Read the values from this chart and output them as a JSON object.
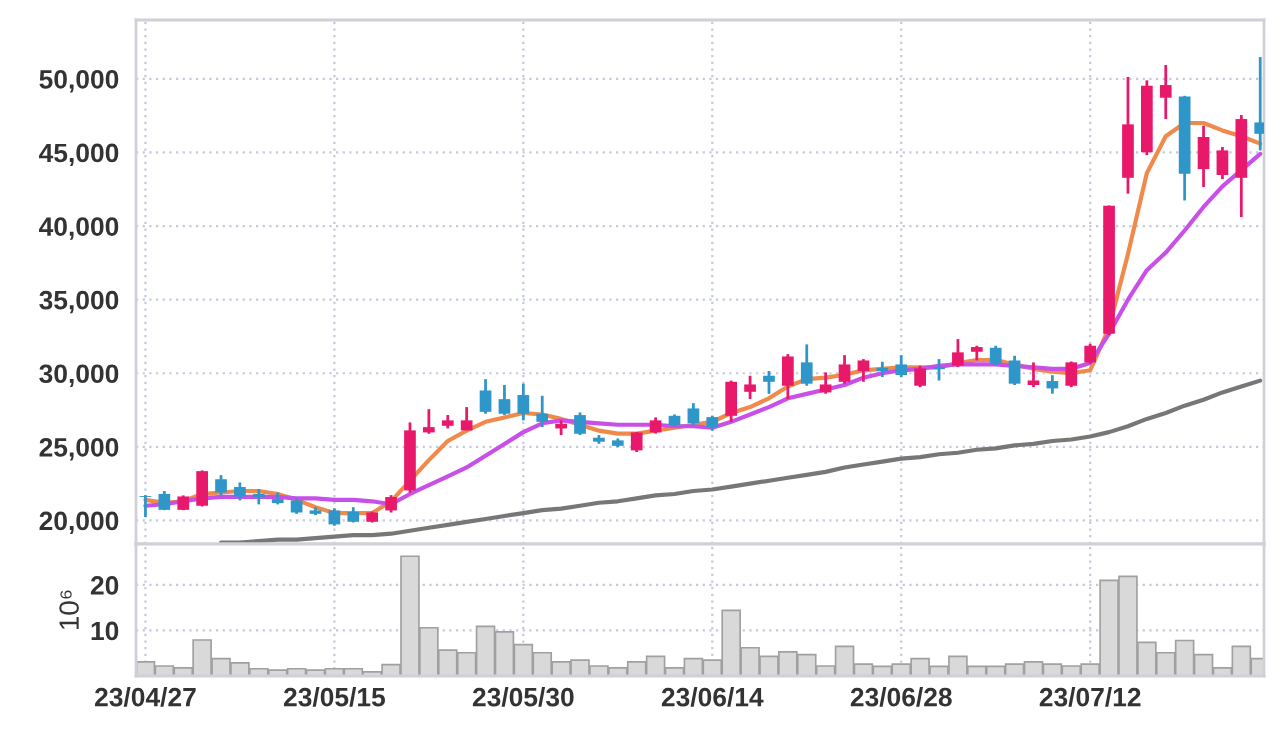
{
  "chart_data": [
    {
      "type": "candlestick",
      "categories": [
        null,
        null,
        null,
        null,
        null,
        null,
        null,
        null,
        null,
        null,
        null,
        null,
        null,
        null,
        null,
        null,
        null,
        null,
        null,
        null,
        null,
        null,
        null,
        null,
        null,
        null,
        null,
        null,
        null,
        null,
        null,
        null,
        null,
        null,
        null,
        null,
        null,
        null,
        null,
        null,
        null,
        null,
        null,
        null,
        null,
        null,
        null,
        null,
        null,
        null,
        null,
        null,
        null,
        null,
        null,
        null,
        null,
        null,
        null,
        null
      ],
      "ohlc": [
        [
          21650,
          21720,
          20230,
          21600
        ],
        [
          21800,
          22000,
          20700,
          20720
        ],
        [
          20720,
          21700,
          20700,
          21630
        ],
        [
          21000,
          23400,
          20950,
          23350
        ],
        [
          22800,
          23080,
          21720,
          21900
        ],
        [
          22270,
          22580,
          21360,
          21630
        ],
        [
          21810,
          22130,
          21090,
          21590
        ],
        [
          21450,
          21900,
          21090,
          21180
        ],
        [
          21360,
          21500,
          20450,
          20540
        ],
        [
          20680,
          20900,
          20360,
          20450
        ],
        [
          20680,
          20820,
          19640,
          19730
        ],
        [
          20590,
          20900,
          19860,
          19910
        ],
        [
          19910,
          20600,
          19860,
          20540
        ],
        [
          20680,
          21720,
          20540,
          21590
        ],
        [
          22040,
          26660,
          21900,
          26120
        ],
        [
          25980,
          27560,
          25890,
          26340
        ],
        [
          26430,
          27160,
          26250,
          26800
        ],
        [
          26120,
          27700,
          26120,
          26800
        ],
        [
          28830,
          29600,
          27250,
          27380
        ],
        [
          28240,
          29200,
          27160,
          27250
        ],
        [
          28520,
          29290,
          26800,
          27250
        ],
        [
          27250,
          28470,
          26340,
          26700
        ],
        [
          26250,
          26800,
          25800,
          26570
        ],
        [
          27160,
          27340,
          25800,
          25890
        ],
        [
          25620,
          25800,
          25210,
          25350
        ],
        [
          25440,
          25570,
          24980,
          25070
        ],
        [
          24760,
          26000,
          24650,
          25980
        ],
        [
          25980,
          27000,
          25900,
          26800
        ],
        [
          27110,
          27200,
          26400,
          26480
        ],
        [
          27610,
          27970,
          26500,
          26610
        ],
        [
          27020,
          27100,
          26100,
          26340
        ],
        [
          27110,
          29500,
          26700,
          29420
        ],
        [
          28740,
          29830,
          28250,
          29240
        ],
        [
          29830,
          30150,
          28600,
          29420
        ],
        [
          29150,
          31300,
          28250,
          31140
        ],
        [
          30740,
          31960,
          29150,
          29290
        ],
        [
          28700,
          30060,
          28610,
          29240
        ],
        [
          29420,
          31230,
          29290,
          30600
        ],
        [
          30150,
          30960,
          29420,
          30870
        ],
        [
          30370,
          30780,
          29740,
          30150
        ],
        [
          30600,
          31230,
          29740,
          29880
        ],
        [
          29150,
          30510,
          29060,
          30330
        ],
        [
          30420,
          30960,
          29510,
          30280
        ],
        [
          30510,
          32320,
          30420,
          31420
        ],
        [
          31460,
          31870,
          30870,
          31780
        ],
        [
          31730,
          31870,
          30510,
          30650
        ],
        [
          30870,
          31190,
          29200,
          29290
        ],
        [
          29200,
          30740,
          29060,
          29510
        ],
        [
          29470,
          29870,
          28610,
          28970
        ],
        [
          29150,
          30800,
          29060,
          30740
        ],
        [
          30740,
          32000,
          30650,
          31870
        ],
        [
          32680,
          41400,
          32590,
          41380
        ],
        [
          43280,
          50130,
          42200,
          46910
        ],
        [
          45010,
          49900,
          44820,
          49540
        ],
        [
          48720,
          50940,
          47270,
          49580
        ],
        [
          48810,
          48850,
          41740,
          43560
        ],
        [
          43870,
          46820,
          42650,
          46050
        ],
        [
          43470,
          45370,
          43190,
          45140
        ],
        [
          43280,
          47540,
          40610,
          47270
        ],
        [
          47040,
          51480,
          45140,
          46270
        ]
      ],
      "colors": [
        "#2f96c9",
        "#2f96c9",
        "#e8196b",
        "#e8196b",
        "#2f96c9",
        "#2f96c9",
        "#2f96c9",
        "#2f96c9",
        "#2f96c9",
        "#2f96c9",
        "#2f96c9",
        "#2f96c9",
        "#e8196b",
        "#e8196b",
        "#e8196b",
        "#e8196b",
        "#e8196b",
        "#e8196b",
        "#2f96c9",
        "#2f96c9",
        "#2f96c9",
        "#2f96c9",
        "#e8196b",
        "#2f96c9",
        "#2f96c9",
        "#2f96c9",
        "#e8196b",
        "#e8196b",
        "#2f96c9",
        "#2f96c9",
        "#2f96c9",
        "#e8196b",
        "#e8196b",
        "#2f96c9",
        "#e8196b",
        "#2f96c9",
        "#e8196b",
        "#e8196b",
        "#e8196b",
        "#2f96c9",
        "#2f96c9",
        "#e8196b",
        "#2f96c9",
        "#e8196b",
        "#e8196b",
        "#2f96c9",
        "#2f96c9",
        "#e8196b",
        "#2f96c9",
        "#e8196b",
        "#e8196b",
        "#e8196b",
        "#e8196b",
        "#e8196b",
        "#e8196b",
        "#2f96c9",
        "#e8196b",
        "#e8196b",
        "#e8196b",
        "#2f96c9"
      ],
      "series": [
        {
          "type": "line",
          "color": "#f08a4b",
          "values": [
            21400,
            21200,
            21300,
            21800,
            21900,
            22000,
            22000,
            21800,
            21400,
            20900,
            20500,
            20500,
            20500,
            21300,
            22700,
            24100,
            25400,
            26100,
            26700,
            27000,
            27300,
            27200,
            26900,
            26500,
            26100,
            25900,
            25900,
            26100,
            26300,
            26500,
            26700,
            27300,
            27700,
            28300,
            29100,
            29600,
            29700,
            29900,
            30200,
            30300,
            30400,
            30400,
            30400,
            30700,
            30900,
            30900,
            30600,
            30300,
            30100,
            30000,
            30200,
            33100,
            38100,
            43600,
            46100,
            47000,
            47000,
            46500,
            46100,
            45600
          ]
        },
        {
          "type": "line",
          "color": "#c850e8",
          "values": [
            21000,
            21100,
            21300,
            21500,
            21600,
            21600,
            21600,
            21600,
            21500,
            21500,
            21400,
            21400,
            21300,
            21100,
            21800,
            22400,
            23000,
            23600,
            24400,
            25200,
            26000,
            26600,
            26800,
            26700,
            26600,
            26500,
            26500,
            26500,
            26400,
            26400,
            26300,
            26700,
            27200,
            27700,
            28300,
            28600,
            28900,
            29200,
            29700,
            30000,
            30200,
            30300,
            30500,
            30600,
            30600,
            30600,
            30500,
            30400,
            30300,
            30300,
            30700,
            32700,
            35000,
            37000,
            38200,
            39700,
            41300,
            42700,
            43800,
            44900
          ]
        },
        {
          "type": "line",
          "color": "#777777",
          "values": [
            null,
            null,
            null,
            null,
            18500,
            18500,
            18600,
            18700,
            18700,
            18800,
            18900,
            19000,
            19000,
            19100,
            19300,
            19500,
            19700,
            19900,
            20100,
            20300,
            20500,
            20700,
            20800,
            21000,
            21200,
            21300,
            21500,
            21700,
            21800,
            22000,
            22100,
            22300,
            22500,
            22700,
            22900,
            23100,
            23300,
            23600,
            23800,
            24000,
            24200,
            24300,
            24500,
            24600,
            24800,
            24900,
            25100,
            25200,
            25400,
            25500,
            25700,
            26000,
            26400,
            26900,
            27300,
            27800,
            28200,
            28700,
            29100,
            29500
          ]
        }
      ],
      "ylim": [
        18400,
        54000
      ],
      "yticks": [
        {
          "value": 20000,
          "label": "20,000"
        },
        {
          "value": 25000,
          "label": "25,000"
        },
        {
          "value": 30000,
          "label": "30,000"
        },
        {
          "value": 35000,
          "label": "35,000"
        },
        {
          "value": 40000,
          "label": "40,000"
        },
        {
          "value": 45000,
          "label": "45,000"
        },
        {
          "value": 50000,
          "label": "50,000"
        }
      ],
      "grid": true,
      "tick_labels": "y"
    },
    {
      "type": "bar",
      "categories": [
        "23/04/27",
        null,
        null,
        null,
        null,
        null,
        null,
        null,
        null,
        null,
        "23/05/15",
        null,
        null,
        null,
        null,
        null,
        null,
        null,
        null,
        null,
        "23/05/30",
        null,
        null,
        null,
        null,
        null,
        null,
        null,
        null,
        null,
        "23/06/14",
        null,
        null,
        null,
        null,
        null,
        null,
        null,
        null,
        null,
        "23/06/28",
        null,
        null,
        null,
        null,
        null,
        null,
        null,
        null,
        null,
        "23/07/12",
        null,
        null,
        null,
        null,
        null,
        null,
        null,
        null,
        null
      ],
      "values": [
        3.1,
        2.2,
        1.8,
        7.9,
        3.8,
        2.9,
        1.6,
        1.3,
        1.6,
        1.3,
        1.6,
        1.6,
        0.9,
        2.5,
        26.3,
        10.6,
        5.7,
        5.1,
        10.9,
        9.7,
        6.9,
        5.1,
        3.1,
        3.5,
        2.2,
        1.8,
        3.1,
        4.3,
        1.8,
        3.8,
        3.5,
        14.4,
        6.2,
        4.3,
        5.3,
        4.7,
        2.2,
        6.5,
        2.6,
        2.1,
        2.6,
        3.8,
        2.1,
        4.3,
        2.1,
        2.1,
        2.6,
        3.1,
        2.6,
        2.2,
        2.6,
        21.0,
        21.9,
        7.4,
        5.1,
        7.8,
        4.7,
        1.8,
        6.5,
        3.8
      ],
      "color": "#d9d9d9",
      "ylabel": "10⁶",
      "ylim": [
        0,
        29
      ],
      "yticks": [
        10,
        20
      ],
      "grid": true
    }
  ]
}
